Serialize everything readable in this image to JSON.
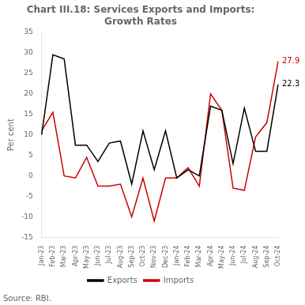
{
  "chart_data": {
    "type": "line",
    "title": "Chart III.18: Services Exports and Imports:\nGrowth Rates",
    "ylabel": "Per cent",
    "source": "Source: RBI.",
    "categories": [
      "Jan-23",
      "Feb-23",
      "Mar-23",
      "Apr-23",
      "May-23",
      "Jun-23",
      "Jul-23",
      "Aug-23",
      "Sep-23",
      "Oct-23",
      "Nov-23",
      "Dec-23",
      "Jan-24",
      "Feb-24",
      "Mar-24",
      "Apr-24",
      "May-24",
      "Jun-24",
      "Jul-24",
      "Aug-24",
      "Sep-24",
      "Oct-24"
    ],
    "series": [
      {
        "name": "Exports",
        "color": "#000000",
        "annotation": "22.3",
        "values": [
          10.0,
          29.5,
          28.5,
          7.5,
          7.5,
          3.5,
          8.0,
          8.5,
          -2.0,
          11.0,
          1.5,
          11.0,
          -0.5,
          1.5,
          0.0,
          17.0,
          16.0,
          3.0,
          16.5,
          6.0,
          6.0,
          22.3
        ]
      },
      {
        "name": "Imports",
        "color": "#cc0000",
        "annotation": "27.9",
        "values": [
          11.0,
          15.5,
          0.0,
          -0.5,
          4.5,
          -2.5,
          -2.5,
          -2.0,
          -10.0,
          -0.5,
          -11.0,
          -0.5,
          -0.5,
          2.0,
          -2.5,
          20.0,
          16.0,
          -3.0,
          -3.5,
          9.5,
          13.0,
          27.9
        ]
      }
    ],
    "ylim": [
      -15,
      35
    ],
    "yticks": [
      -15,
      -10,
      -5,
      0,
      5,
      10,
      15,
      20,
      25,
      30,
      35
    ],
    "grid": false,
    "legend": "bottom"
  }
}
